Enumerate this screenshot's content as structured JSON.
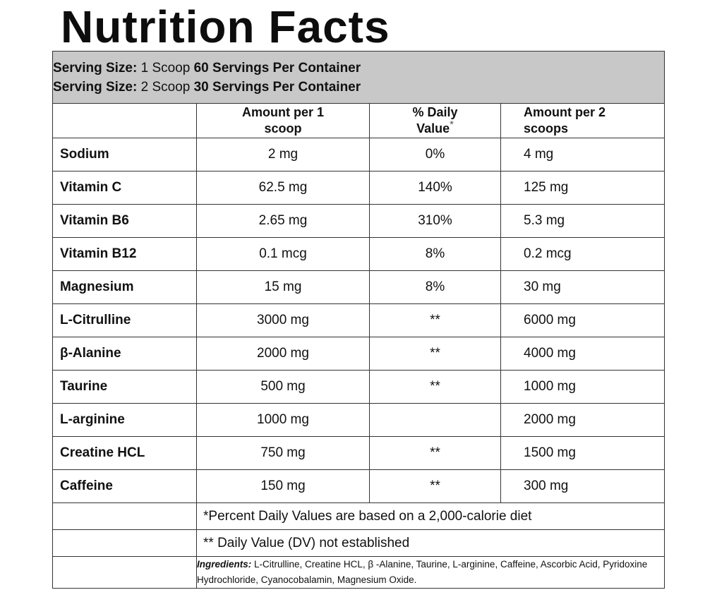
{
  "title": "Nutrition Facts",
  "serving": [
    {
      "label": "Serving Size:",
      "size": " 1 Scoop ",
      "servings": "60 Servings Per Container"
    },
    {
      "label": "Serving Size:",
      "size": " 2 Scoop ",
      "servings": "30 Servings Per Container"
    }
  ],
  "headers": {
    "amount1": "Amount per 1 scoop",
    "dv": "% Daily Value",
    "dv_mark": "*",
    "amount2": "Amount per 2 scoops"
  },
  "nutrients": [
    {
      "name": "Sodium",
      "amount1": "2 mg",
      "dv": "0%",
      "amount2": "4 mg"
    },
    {
      "name": "Vitamin C",
      "amount1": "62.5 mg",
      "dv": "140%",
      "amount2": "125 mg"
    },
    {
      "name": "Vitamin B6",
      "amount1": "2.65 mg",
      "dv": "310%",
      "amount2": "5.3 mg"
    },
    {
      "name": "Vitamin B12",
      "amount1": "0.1 mcg",
      "dv": "8%",
      "amount2": "0.2 mcg"
    },
    {
      "name": "Magnesium",
      "amount1": "15 mg",
      "dv": "8%",
      "amount2": "30 mg"
    },
    {
      "name": "L-Citrulline",
      "amount1": "3000 mg",
      "dv": "**",
      "amount2": "6000 mg"
    },
    {
      "name": "β-Alanine",
      "amount1": "2000 mg",
      "dv": "**",
      "amount2": "4000 mg"
    },
    {
      "name": "Taurine",
      "amount1": "500 mg",
      "dv": "**",
      "amount2": "1000 mg"
    },
    {
      "name": "L-arginine",
      "amount1": "1000 mg",
      "dv": "",
      "amount2": "2000 mg"
    },
    {
      "name": "Creatine HCL",
      "amount1": "750 mg",
      "dv": "**",
      "amount2": "1500 mg"
    },
    {
      "name": "Caffeine",
      "amount1": "150 mg",
      "dv": "**",
      "amount2": "300 mg"
    }
  ],
  "notes": {
    "dv_basis": "*Percent Daily Values are based on a 2,000-calorie diet",
    "dv_not_established": "** Daily Value (DV) not established"
  },
  "ingredients": {
    "label": "Ingredients:",
    "text": " L-Citrulline, Creatine HCL, β -Alanine, Taurine, L-arginine, Caffeine, Ascorbic Acid, Pyridoxine Hydrochloride, Cyanocobalamin, Magnesium Oxide."
  }
}
